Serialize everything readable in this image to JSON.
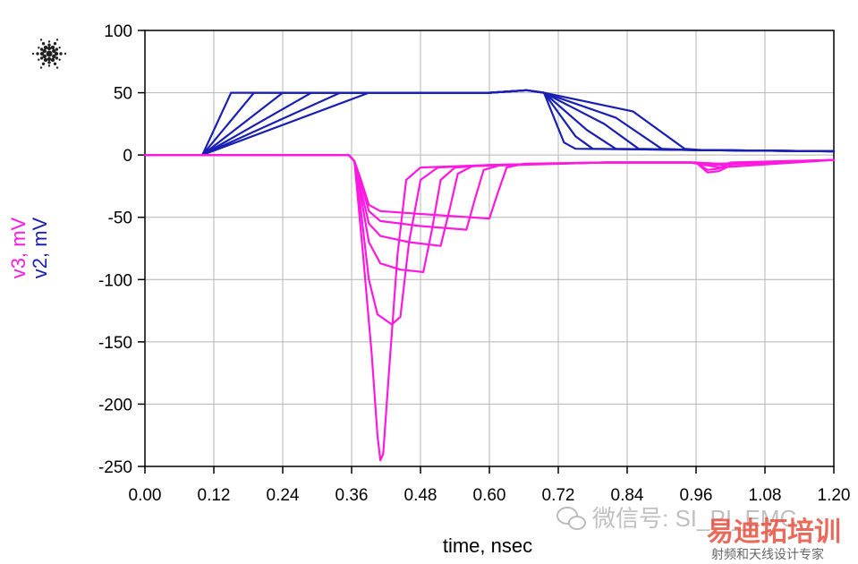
{
  "chart_data": {
    "type": "line",
    "title": "",
    "xlabel": "time, nsec",
    "ylabel_series": [
      {
        "label": "v3, mV",
        "color": "#ff19e0"
      },
      {
        "label": "v2, mV",
        "color": "#1a1fb4"
      }
    ],
    "xlim": [
      0.0,
      1.2
    ],
    "ylim": [
      -250,
      100
    ],
    "x_ticks": [
      "0.00",
      "0.12",
      "0.24",
      "0.36",
      "0.48",
      "0.60",
      "0.72",
      "0.84",
      "0.96",
      "1.08",
      "1.20"
    ],
    "x_tick_values": [
      0.0,
      0.12,
      0.24,
      0.36,
      0.48,
      0.6,
      0.72,
      0.84,
      0.96,
      1.08,
      1.2
    ],
    "y_ticks": [
      "100",
      "50",
      "0",
      "-50",
      "-100",
      "-150",
      "-200",
      "-250"
    ],
    "y_tick_values": [
      100,
      50,
      0,
      -50,
      -100,
      -150,
      -200,
      -250
    ],
    "grid": true,
    "series": [
      {
        "group": "v2",
        "color": "#1a1fb4",
        "points": [
          [
            0,
            0
          ],
          [
            0.1,
            0
          ],
          [
            0.15,
            50
          ],
          [
            0.4,
            50
          ],
          [
            0.6,
            50
          ],
          [
            0.665,
            52
          ],
          [
            0.68,
            51
          ],
          [
            0.695,
            50
          ],
          [
            0.73,
            10
          ],
          [
            0.75,
            5
          ],
          [
            0.96,
            4
          ],
          [
            1.2,
            3
          ]
        ]
      },
      {
        "group": "v2",
        "color": "#1a1fb4",
        "points": [
          [
            0,
            0
          ],
          [
            0.1,
            0
          ],
          [
            0.19,
            50
          ],
          [
            0.4,
            50
          ],
          [
            0.6,
            50
          ],
          [
            0.665,
            52
          ],
          [
            0.68,
            51
          ],
          [
            0.695,
            50
          ],
          [
            0.75,
            15
          ],
          [
            0.78,
            5
          ],
          [
            0.96,
            4
          ],
          [
            1.2,
            3
          ]
        ]
      },
      {
        "group": "v2",
        "color": "#1a1fb4",
        "points": [
          [
            0,
            0
          ],
          [
            0.1,
            0
          ],
          [
            0.24,
            50
          ],
          [
            0.4,
            50
          ],
          [
            0.6,
            50
          ],
          [
            0.665,
            52
          ],
          [
            0.68,
            51
          ],
          [
            0.695,
            50
          ],
          [
            0.77,
            20
          ],
          [
            0.82,
            5
          ],
          [
            0.96,
            4
          ],
          [
            1.2,
            3
          ]
        ]
      },
      {
        "group": "v2",
        "color": "#1a1fb4",
        "points": [
          [
            0,
            0
          ],
          [
            0.1,
            0
          ],
          [
            0.29,
            50
          ],
          [
            0.4,
            50
          ],
          [
            0.6,
            50
          ],
          [
            0.665,
            52
          ],
          [
            0.68,
            51
          ],
          [
            0.695,
            50
          ],
          [
            0.8,
            25
          ],
          [
            0.86,
            5
          ],
          [
            0.96,
            4
          ],
          [
            1.2,
            3
          ]
        ]
      },
      {
        "group": "v2",
        "color": "#1a1fb4",
        "points": [
          [
            0,
            0
          ],
          [
            0.1,
            0
          ],
          [
            0.34,
            50
          ],
          [
            0.4,
            50
          ],
          [
            0.6,
            50
          ],
          [
            0.665,
            52
          ],
          [
            0.68,
            51
          ],
          [
            0.695,
            50
          ],
          [
            0.82,
            30
          ],
          [
            0.9,
            5
          ],
          [
            0.96,
            4
          ],
          [
            1.2,
            3
          ]
        ]
      },
      {
        "group": "v2",
        "color": "#1a1fb4",
        "points": [
          [
            0,
            0
          ],
          [
            0.1,
            0
          ],
          [
            0.39,
            50
          ],
          [
            0.6,
            50
          ],
          [
            0.665,
            52
          ],
          [
            0.68,
            51
          ],
          [
            0.695,
            50
          ],
          [
            0.85,
            35
          ],
          [
            0.94,
            5
          ],
          [
            0.97,
            4
          ],
          [
            1.2,
            3
          ]
        ]
      },
      {
        "group": "v3",
        "color": "#ff19e0",
        "points": [
          [
            0,
            0
          ],
          [
            0.355,
            0
          ],
          [
            0.365,
            -5
          ],
          [
            0.38,
            -80
          ],
          [
            0.395,
            -160
          ],
          [
            0.405,
            -225
          ],
          [
            0.41,
            -245
          ],
          [
            0.415,
            -240
          ],
          [
            0.425,
            -175
          ],
          [
            0.44,
            -80
          ],
          [
            0.455,
            -20
          ],
          [
            0.48,
            -10
          ],
          [
            0.6,
            -8
          ],
          [
            0.8,
            -6
          ],
          [
            0.95,
            -6
          ],
          [
            1.0,
            -7
          ],
          [
            1.2,
            -4
          ]
        ]
      },
      {
        "group": "v3",
        "color": "#ff19e0",
        "points": [
          [
            0,
            0
          ],
          [
            0.355,
            0
          ],
          [
            0.365,
            -5
          ],
          [
            0.375,
            -40
          ],
          [
            0.39,
            -100
          ],
          [
            0.405,
            -128
          ],
          [
            0.43,
            -136
          ],
          [
            0.445,
            -130
          ],
          [
            0.46,
            -70
          ],
          [
            0.48,
            -20
          ],
          [
            0.51,
            -10
          ],
          [
            0.6,
            -8
          ],
          [
            0.8,
            -6
          ],
          [
            0.95,
            -6
          ],
          [
            1.0,
            -7
          ],
          [
            1.2,
            -4
          ]
        ]
      },
      {
        "group": "v3",
        "color": "#ff19e0",
        "points": [
          [
            0,
            0
          ],
          [
            0.355,
            0
          ],
          [
            0.365,
            -5
          ],
          [
            0.375,
            -30
          ],
          [
            0.39,
            -70
          ],
          [
            0.41,
            -87
          ],
          [
            0.445,
            -92
          ],
          [
            0.485,
            -94
          ],
          [
            0.5,
            -60
          ],
          [
            0.515,
            -20
          ],
          [
            0.54,
            -10
          ],
          [
            0.6,
            -8
          ],
          [
            0.8,
            -6
          ],
          [
            0.95,
            -6
          ],
          [
            1.0,
            -8
          ],
          [
            1.2,
            -4
          ]
        ]
      },
      {
        "group": "v3",
        "color": "#ff19e0",
        "points": [
          [
            0,
            0
          ],
          [
            0.355,
            0
          ],
          [
            0.365,
            -5
          ],
          [
            0.375,
            -25
          ],
          [
            0.39,
            -55
          ],
          [
            0.41,
            -65
          ],
          [
            0.46,
            -70
          ],
          [
            0.515,
            -73
          ],
          [
            0.53,
            -45
          ],
          [
            0.545,
            -15
          ],
          [
            0.57,
            -9
          ],
          [
            0.8,
            -6
          ],
          [
            0.95,
            -6
          ],
          [
            1.0,
            -10
          ],
          [
            1.2,
            -4
          ]
        ]
      },
      {
        "group": "v3",
        "color": "#ff19e0",
        "points": [
          [
            0,
            0
          ],
          [
            0.355,
            0
          ],
          [
            0.365,
            -5
          ],
          [
            0.375,
            -20
          ],
          [
            0.39,
            -45
          ],
          [
            0.41,
            -53
          ],
          [
            0.48,
            -57
          ],
          [
            0.56,
            -60
          ],
          [
            0.575,
            -35
          ],
          [
            0.59,
            -12
          ],
          [
            0.62,
            -8
          ],
          [
            0.8,
            -6
          ],
          [
            0.96,
            -6
          ],
          [
            0.98,
            -12
          ],
          [
            1.0,
            -11
          ],
          [
            1.02,
            -6
          ],
          [
            1.2,
            -4
          ]
        ]
      },
      {
        "group": "v3",
        "color": "#ff19e0",
        "points": [
          [
            0,
            0
          ],
          [
            0.355,
            0
          ],
          [
            0.365,
            -5
          ],
          [
            0.375,
            -18
          ],
          [
            0.39,
            -40
          ],
          [
            0.41,
            -45
          ],
          [
            0.5,
            -48
          ],
          [
            0.6,
            -51
          ],
          [
            0.615,
            -30
          ],
          [
            0.63,
            -10
          ],
          [
            0.66,
            -7
          ],
          [
            0.8,
            -6
          ],
          [
            0.96,
            -6
          ],
          [
            0.98,
            -14
          ],
          [
            1.0,
            -13
          ],
          [
            1.03,
            -6
          ],
          [
            1.2,
            -4
          ]
        ]
      }
    ]
  },
  "logo": {
    "name": "agilent-spark-icon"
  },
  "watermark": {
    "wechat_text": "微信号: SI_PI_EMC",
    "brand_text": "易迪拓培训",
    "brand_subtitle": "射频和天线设计专家"
  }
}
